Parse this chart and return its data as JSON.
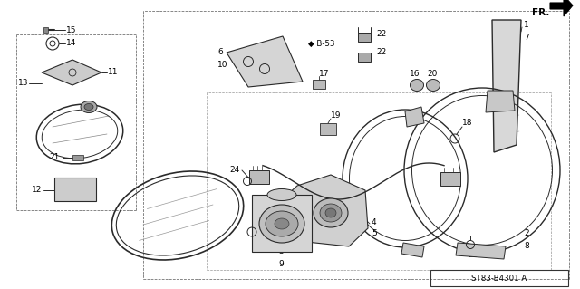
{
  "bg_color": "#ffffff",
  "line_color": "#2a2a2a",
  "gray_fill": "#d0d0d0",
  "light_gray": "#e8e8e8",
  "figsize": [
    6.4,
    3.19
  ],
  "dpi": 100,
  "diagram_id": "ST83-B4301 A"
}
